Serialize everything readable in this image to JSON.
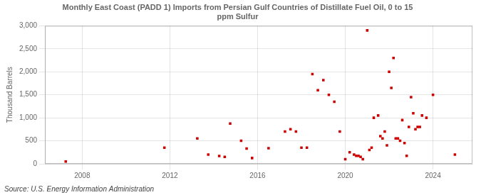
{
  "chart_data": {
    "type": "scatter",
    "title": "Monthly East Coast (PADD 1) Imports from Persian Gulf Countries of Distillate Fuel Oil, 0 to 15\nppm Sulfur",
    "ylabel": "Thousand Barrels",
    "annotations": [
      "Source: U.S. Energy Information Administration"
    ],
    "color": "#cc0000",
    "marker": "square",
    "grid": true,
    "xlim": [
      2006.3,
      2025.8
    ],
    "xticks": [
      2008,
      2012,
      2016,
      2020,
      2024
    ],
    "ylim": [
      0,
      3000
    ],
    "yticks": [
      0,
      500,
      {
        "value": 1000,
        "label": "1,000"
      },
      {
        "value": 1500,
        "label": "1,500"
      },
      {
        "value": 2000,
        "label": "2,000"
      },
      {
        "value": 2500,
        "label": "2,500"
      },
      {
        "value": 3000,
        "label": "3,000"
      }
    ],
    "x": [
      2007.25,
      2011.75,
      2013.25,
      2013.75,
      2014.25,
      2014.5,
      2014.75,
      2015.25,
      2015.5,
      2015.75,
      2016.5,
      2017.25,
      2017.5,
      2017.75,
      2018.0,
      2018.25,
      2018.5,
      2018.75,
      2019.0,
      2019.25,
      2019.5,
      2019.75,
      2020.0,
      2020.2,
      2020.4,
      2020.5,
      2020.6,
      2020.7,
      2020.8,
      2021.0,
      2021.1,
      2021.2,
      2021.3,
      2021.5,
      2021.6,
      2021.7,
      2021.8,
      2021.9,
      2022.0,
      2022.1,
      2022.2,
      2022.3,
      2022.4,
      2022.5,
      2022.6,
      2022.7,
      2022.8,
      2022.9,
      2023.0,
      2023.1,
      2023.2,
      2023.3,
      2023.4,
      2023.5,
      2023.7,
      2024.0,
      2025.0
    ],
    "values": [
      50,
      350,
      550,
      200,
      170,
      150,
      875,
      500,
      330,
      125,
      340,
      700,
      750,
      700,
      350,
      350,
      1950,
      1600,
      1820,
      1500,
      1350,
      700,
      100,
      250,
      200,
      175,
      175,
      150,
      100,
      2900,
      300,
      350,
      1000,
      1050,
      600,
      550,
      700,
      400,
      2000,
      1650,
      2300,
      550,
      550,
      500,
      950,
      450,
      175,
      800,
      1450,
      1100,
      750,
      800,
      800,
      1050,
      1000,
      1500,
      200
    ]
  }
}
